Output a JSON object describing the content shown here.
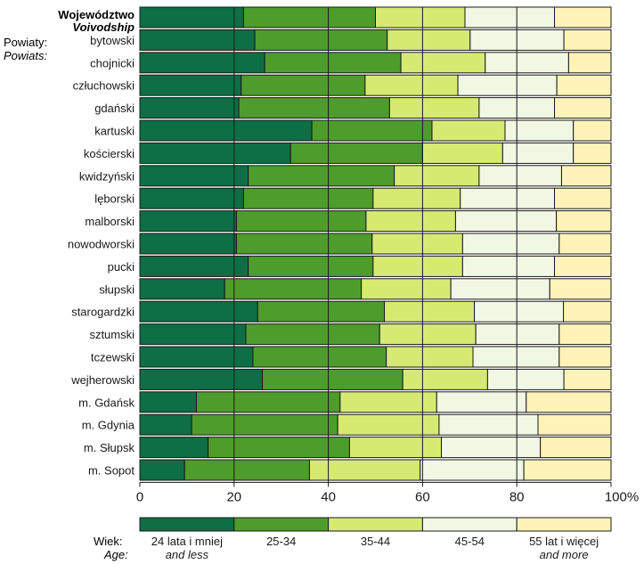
{
  "chart_data": {
    "type": "bar",
    "orientation": "horizontal",
    "stacked": true,
    "header": {
      "category_label": "Województwo",
      "category_label_en": "Voivodship",
      "subgroup_label": "Powiaty:",
      "subgroup_label_en": "Powiats:"
    },
    "categories": [
      "Województwo",
      "bytowski",
      "chojnicki",
      "człuchowski",
      "gdański",
      "kartuski",
      "kościerski",
      "kwidzyński",
      "lęborski",
      "malborski",
      "nowodworski",
      "pucki",
      "słupski",
      "starogardzki",
      "sztumski",
      "tczewski",
      "wejherowski",
      "m. Gdańsk",
      "m. Gdynia",
      "m. Słupsk",
      "m. Sopot"
    ],
    "series": [
      {
        "name": "24 lata i mniej",
        "name_en": "and less",
        "color": "#0e6e45",
        "values": [
          22.0,
          24.4,
          26.5,
          21.5,
          21.0,
          36.5,
          32.0,
          23.0,
          22.0,
          20.5,
          20.5,
          23.0,
          18.0,
          25.0,
          22.5,
          24.0,
          26.0,
          12.0,
          11.0,
          14.5,
          9.5
        ]
      },
      {
        "name": "25-34",
        "name_en": "",
        "color": "#4e9c2c",
        "values": [
          28.0,
          28.1,
          28.9,
          26.3,
          32.0,
          25.5,
          28.0,
          31.0,
          27.5,
          27.5,
          28.8,
          26.5,
          29.0,
          26.9,
          28.4,
          28.3,
          29.8,
          30.5,
          31.0,
          30.0,
          26.5
        ]
      },
      {
        "name": "35-44",
        "name_en": "",
        "color": "#d6ea72",
        "values": [
          19.0,
          17.6,
          17.9,
          19.7,
          19.0,
          15.5,
          17.0,
          18.0,
          18.5,
          19.0,
          19.2,
          19.0,
          19.0,
          19.1,
          20.4,
          18.4,
          18.0,
          20.5,
          21.5,
          19.5,
          23.5
        ]
      },
      {
        "name": "45-54",
        "name_en": "",
        "color": "#f0f8e4",
        "values": [
          19.0,
          19.9,
          17.7,
          21.0,
          16.0,
          14.5,
          15.0,
          17.5,
          20.0,
          21.4,
          20.5,
          19.5,
          21.0,
          18.9,
          17.7,
          18.3,
          16.2,
          19.0,
          21.0,
          21.0,
          22.0
        ]
      },
      {
        "name": "55 lat i więcej",
        "name_en": "and more",
        "color": "#fff3b8",
        "values": [
          12.0,
          10.0,
          9.0,
          11.5,
          12.0,
          8.0,
          8.0,
          10.5,
          12.0,
          11.6,
          11.0,
          12.0,
          13.0,
          10.1,
          11.0,
          11.0,
          10.0,
          18.0,
          15.5,
          15.0,
          18.5
        ]
      }
    ],
    "xlim": [
      0,
      100
    ],
    "xticks": [
      "0",
      "20",
      "40",
      "60",
      "80",
      "100%"
    ],
    "grid": "vertical",
    "legend": {
      "position": "bottom",
      "title": "Wiek:",
      "title_en": "Age:"
    }
  }
}
